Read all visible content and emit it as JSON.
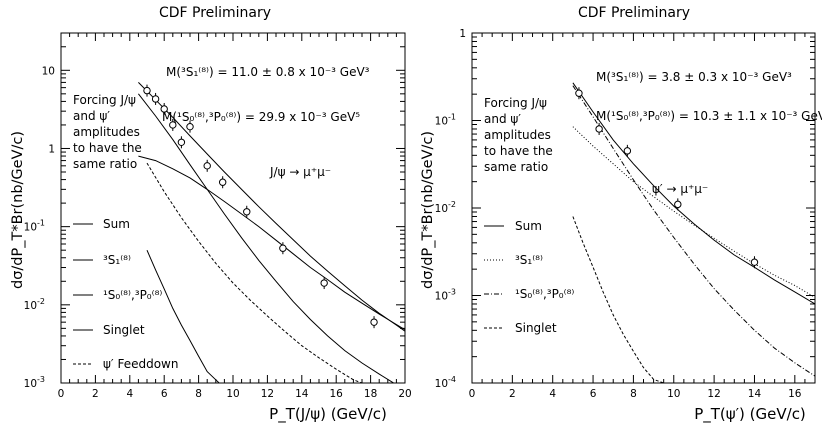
{
  "chart_data": [
    {
      "type": "line",
      "title": "CDF Preliminary",
      "xlabel": "P_T(J/ψ) (GeV/c)",
      "ylabel": "dσ/dP_T*Br(nb/GeV/c)",
      "xlim": [
        0,
        20
      ],
      "ylim": [
        0.001,
        30
      ],
      "yscale": "log",
      "x_ticks": [
        "0",
        "2",
        "4",
        "6",
        "8",
        "10",
        "12",
        "14",
        "16",
        "18",
        "20"
      ],
      "y_ticks": [
        {
          "value": 0.001,
          "base": "10",
          "exp": "-3"
        },
        {
          "value": 0.01,
          "base": "10",
          "exp": "-2"
        },
        {
          "value": 0.1,
          "base": "10",
          "exp": "-1"
        },
        {
          "value": 1,
          "base": "1",
          "exp": ""
        },
        {
          "value": 10,
          "base": "10",
          "exp": ""
        }
      ],
      "annotations": {
        "m1": "M(³S₁⁽⁸⁾) = 11.0 ± 0.8 x 10⁻³ GeV³",
        "m2": "M(¹S₀⁽⁸⁾,³P₀⁽⁸⁾) = 29.9 x 10⁻³ GeV⁵",
        "process": "J/ψ → μ⁺μ⁻",
        "note": [
          "Forcing J/ψ",
          "and ψ′",
          "amplitudes",
          "to have the",
          "same ratio"
        ]
      },
      "legend": [
        "Sum",
        "³S₁⁽⁸⁾",
        "¹S₀⁽⁸⁾,³P₀⁽⁸⁾",
        "Singlet",
        "ψ′ Feeddown"
      ],
      "points": {
        "x": [
          5.0,
          5.5,
          6.0,
          6.5,
          7.0,
          7.5,
          8.5,
          9.4,
          10.8,
          12.9,
          15.3,
          18.2
        ],
        "y": [
          5.5,
          4.3,
          3.2,
          2.0,
          1.2,
          1.9,
          0.6,
          0.37,
          0.155,
          0.053,
          0.019,
          0.006
        ]
      },
      "series": [
        {
          "name": "Sum",
          "style": "solid",
          "x": [
            4.5,
            5.5,
            6.5,
            7.5,
            8.5,
            9.5,
            10.5,
            11.5,
            12.5,
            13.5,
            14.5,
            15.5,
            16.5,
            17.5,
            18.5,
            19.5,
            20.0
          ],
          "y": [
            7.0,
            4.2,
            2.5,
            1.45,
            0.85,
            0.5,
            0.3,
            0.18,
            0.11,
            0.068,
            0.042,
            0.027,
            0.0175,
            0.0115,
            0.0078,
            0.0055,
            0.0046
          ]
        },
        {
          "name": "³S₁⁽⁸⁾",
          "style": "solid",
          "x": [
            4.5,
            5.5,
            6.5,
            7.5,
            8.5,
            9.5,
            10.5,
            11.5,
            12.5,
            13.5,
            14.5,
            15.5,
            16.5,
            17.5,
            18.5,
            19.5,
            20.0
          ],
          "y": [
            0.8,
            0.7,
            0.55,
            0.42,
            0.3,
            0.21,
            0.145,
            0.1,
            0.067,
            0.045,
            0.03,
            0.021,
            0.0145,
            0.0105,
            0.0076,
            0.0056,
            0.0048
          ]
        },
        {
          "name": "¹S₀⁽⁸⁾,³P₀⁽⁸⁾",
          "style": "solid",
          "x": [
            4.5,
            5.5,
            6.5,
            7.5,
            8.5,
            9.5,
            10.5,
            11.5,
            12.5,
            13.5,
            14.5,
            15.5,
            16.5,
            17.5,
            18.5,
            19.5,
            20.0
          ],
          "y": [
            5.0,
            2.6,
            1.3,
            0.62,
            0.3,
            0.145,
            0.072,
            0.037,
            0.02,
            0.011,
            0.0065,
            0.004,
            0.0026,
            0.0018,
            0.0013,
            0.00095,
            0.0008
          ]
        },
        {
          "name": "Singlet",
          "style": "solid",
          "x": [
            5.0,
            5.5,
            6.0,
            6.5,
            7.0,
            7.5,
            8.0,
            8.5,
            9.0,
            9.2
          ],
          "y": [
            0.05,
            0.028,
            0.016,
            0.009,
            0.0055,
            0.0035,
            0.0022,
            0.0014,
            0.0011,
            0.001
          ]
        },
        {
          "name": "ψ′ Feeddown",
          "style": "dashed",
          "x": [
            5.0,
            6.0,
            7.0,
            8.0,
            9.0,
            10.0,
            11.0,
            12.0,
            13.0,
            14.0,
            15.0,
            16.0,
            17.0,
            17.5
          ],
          "y": [
            0.65,
            0.28,
            0.13,
            0.065,
            0.034,
            0.019,
            0.0115,
            0.0072,
            0.0046,
            0.003,
            0.0021,
            0.0015,
            0.0011,
            0.001
          ]
        }
      ]
    },
    {
      "type": "line",
      "title": "CDF Preliminary",
      "xlabel": "P_T(ψ′) (GeV/c)",
      "ylabel": "dσ/dP_T*Br(nb/GeV/c)",
      "xlim": [
        0,
        17
      ],
      "ylim": [
        0.0001,
        1
      ],
      "yscale": "log",
      "x_ticks": [
        "0",
        "2",
        "4",
        "6",
        "8",
        "10",
        "12",
        "14",
        "16"
      ],
      "y_ticks": [
        {
          "value": 0.0001,
          "base": "10",
          "exp": "-4"
        },
        {
          "value": 0.001,
          "base": "10",
          "exp": "-3"
        },
        {
          "value": 0.01,
          "base": "10",
          "exp": "-2"
        },
        {
          "value": 0.1,
          "base": "10",
          "exp": "-1"
        },
        {
          "value": 1,
          "base": "1",
          "exp": ""
        }
      ],
      "annotations": {
        "m1": "M(³S₁⁽⁸⁾) = 3.8 ± 0.3 x 10⁻³ GeV³",
        "m2": "M(¹S₀⁽⁸⁾,³P₀⁽⁸⁾) = 10.3 ± 1.1 x 10⁻³ GeV⁵",
        "process": "ψ′ → μ⁺μ⁻",
        "note": [
          "Forcing J/ψ",
          "and ψ′",
          "amplitudes",
          "to have the",
          "same ratio"
        ]
      },
      "legend": [
        "Sum",
        "³S₁⁽⁸⁾",
        "¹S₀⁽⁸⁾,³P₀⁽⁸⁾",
        "Singlet"
      ],
      "points": {
        "x": [
          5.3,
          6.3,
          7.7,
          10.2,
          14.0
        ],
        "y": [
          0.205,
          0.08,
          0.045,
          0.011,
          0.0024
        ]
      },
      "series": [
        {
          "name": "Sum",
          "style": "solid",
          "x": [
            5.0,
            6.0,
            7.0,
            8.0,
            9.0,
            10.0,
            11.0,
            12.0,
            13.0,
            14.0,
            15.0,
            16.0,
            17.0
          ],
          "y": [
            0.27,
            0.125,
            0.06,
            0.032,
            0.018,
            0.0105,
            0.0066,
            0.0043,
            0.0029,
            0.0021,
            0.0015,
            0.0011,
            0.0008
          ]
        },
        {
          "name": "³S₁⁽⁸⁾",
          "style": "dotted",
          "x": [
            5.0,
            6.0,
            7.0,
            8.0,
            9.0,
            10.0,
            11.0,
            12.0,
            13.0,
            14.0,
            15.0,
            16.0,
            17.0
          ],
          "y": [
            0.085,
            0.051,
            0.032,
            0.02,
            0.0135,
            0.0092,
            0.0064,
            0.0045,
            0.0032,
            0.0023,
            0.0017,
            0.0013,
            0.00095
          ]
        },
        {
          "name": "¹S₀⁽⁸⁾,³P₀⁽⁸⁾",
          "style": "dashdot",
          "x": [
            5.0,
            6.0,
            7.0,
            8.0,
            9.0,
            10.0,
            11.0,
            12.0,
            13.0,
            14.0,
            15.0,
            16.0,
            17.0
          ],
          "y": [
            0.25,
            0.11,
            0.048,
            0.021,
            0.0095,
            0.0046,
            0.0023,
            0.0012,
            0.00068,
            0.0004,
            0.00025,
            0.00017,
            0.00012
          ]
        },
        {
          "name": "Singlet",
          "style": "dashed",
          "x": [
            5.0,
            5.5,
            6.0,
            6.5,
            7.0,
            7.5,
            8.0,
            8.5,
            9.0,
            9.5
          ],
          "y": [
            0.008,
            0.004,
            0.0021,
            0.0011,
            0.0006,
            0.00036,
            0.00023,
            0.00015,
            0.00011,
            0.0001
          ]
        }
      ]
    }
  ]
}
